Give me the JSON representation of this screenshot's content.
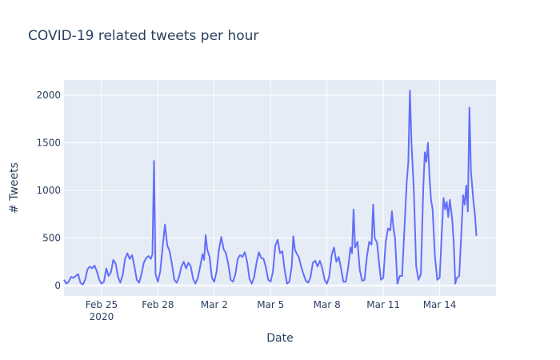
{
  "chart_data": {
    "type": "line",
    "title": "COVID-19 related tweets per hour",
    "xlabel": "Date",
    "ylabel": "# Tweets",
    "x_range": [
      "2020-02-23T00:00",
      "2020-03-17T00:00"
    ],
    "ylim": [
      -110,
      2160
    ],
    "x_ticks": [
      {
        "date": "2020-02-25T00:00",
        "label": "Feb 25",
        "sublabel": "2020"
      },
      {
        "date": "2020-02-28T00:00",
        "label": "Feb 28",
        "sublabel": ""
      },
      {
        "date": "2020-03-02T00:00",
        "label": "Mar 2",
        "sublabel": ""
      },
      {
        "date": "2020-03-05T00:00",
        "label": "Mar 5",
        "sublabel": ""
      },
      {
        "date": "2020-03-08T00:00",
        "label": "Mar 8",
        "sublabel": ""
      },
      {
        "date": "2020-03-11T00:00",
        "label": "Mar 11",
        "sublabel": ""
      },
      {
        "date": "2020-03-14T00:00",
        "label": "Mar 14",
        "sublabel": ""
      }
    ],
    "y_ticks": [
      0,
      500,
      1000,
      1500,
      2000
    ],
    "y_tick_labels": [
      "0",
      "500",
      "1000",
      "1500",
      "2000"
    ],
    "grid": true,
    "series": [
      {
        "color": "#636efa",
        "points": [
          [
            "2020-02-23T00:00",
            60
          ],
          [
            "2020-02-23T03:00",
            20
          ],
          [
            "2020-02-23T06:00",
            40
          ],
          [
            "2020-02-23T09:00",
            90
          ],
          [
            "2020-02-23T12:00",
            80
          ],
          [
            "2020-02-23T15:00",
            100
          ],
          [
            "2020-02-23T18:00",
            120
          ],
          [
            "2020-02-23T21:00",
            30
          ],
          [
            "2020-02-24T00:00",
            10
          ],
          [
            "2020-02-24T03:00",
            60
          ],
          [
            "2020-02-24T06:00",
            170
          ],
          [
            "2020-02-24T09:00",
            200
          ],
          [
            "2020-02-24T12:00",
            180
          ],
          [
            "2020-02-24T15:00",
            210
          ],
          [
            "2020-02-24T18:00",
            150
          ],
          [
            "2020-02-24T21:00",
            60
          ],
          [
            "2020-02-25T00:00",
            20
          ],
          [
            "2020-02-25T03:00",
            40
          ],
          [
            "2020-02-25T06:00",
            180
          ],
          [
            "2020-02-25T09:00",
            100
          ],
          [
            "2020-02-25T12:00",
            140
          ],
          [
            "2020-02-25T15:00",
            270
          ],
          [
            "2020-02-25T18:00",
            230
          ],
          [
            "2020-02-25T21:00",
            90
          ],
          [
            "2020-02-26T00:00",
            30
          ],
          [
            "2020-02-26T03:00",
            110
          ],
          [
            "2020-02-26T06:00",
            280
          ],
          [
            "2020-02-26T09:00",
            340
          ],
          [
            "2020-02-26T12:00",
            280
          ],
          [
            "2020-02-26T15:00",
            320
          ],
          [
            "2020-02-26T18:00",
            200
          ],
          [
            "2020-02-26T21:00",
            60
          ],
          [
            "2020-02-27T00:00",
            30
          ],
          [
            "2020-02-27T03:00",
            120
          ],
          [
            "2020-02-27T06:00",
            240
          ],
          [
            "2020-02-27T09:00",
            290
          ],
          [
            "2020-02-27T12:00",
            310
          ],
          [
            "2020-02-27T15:00",
            280
          ],
          [
            "2020-02-27T17:00",
            330
          ],
          [
            "2020-02-27T19:00",
            1310
          ],
          [
            "2020-02-27T21:00",
            120
          ],
          [
            "2020-02-28T00:00",
            40
          ],
          [
            "2020-02-28T03:00",
            150
          ],
          [
            "2020-02-28T06:00",
            400
          ],
          [
            "2020-02-28T09:00",
            640
          ],
          [
            "2020-02-28T12:00",
            420
          ],
          [
            "2020-02-28T15:00",
            360
          ],
          [
            "2020-02-28T18:00",
            220
          ],
          [
            "2020-02-28T21:00",
            60
          ],
          [
            "2020-02-29T00:00",
            30
          ],
          [
            "2020-02-29T03:00",
            90
          ],
          [
            "2020-02-29T06:00",
            200
          ],
          [
            "2020-02-29T09:00",
            250
          ],
          [
            "2020-02-29T12:00",
            180
          ],
          [
            "2020-02-29T15:00",
            240
          ],
          [
            "2020-02-29T18:00",
            200
          ],
          [
            "2020-02-29T21:00",
            70
          ],
          [
            "2020-03-01T00:00",
            20
          ],
          [
            "2020-03-01T03:00",
            80
          ],
          [
            "2020-03-01T06:00",
            200
          ],
          [
            "2020-03-01T09:00",
            330
          ],
          [
            "2020-03-01T11:00",
            270
          ],
          [
            "2020-03-01T13:00",
            530
          ],
          [
            "2020-03-01T15:00",
            380
          ],
          [
            "2020-03-01T18:00",
            300
          ],
          [
            "2020-03-01T21:00",
            80
          ],
          [
            "2020-03-02T00:00",
            40
          ],
          [
            "2020-03-02T03:00",
            150
          ],
          [
            "2020-03-02T06:00",
            380
          ],
          [
            "2020-03-02T09:00",
            510
          ],
          [
            "2020-03-02T12:00",
            380
          ],
          [
            "2020-03-02T15:00",
            340
          ],
          [
            "2020-03-02T18:00",
            220
          ],
          [
            "2020-03-02T21:00",
            60
          ],
          [
            "2020-03-03T00:00",
            40
          ],
          [
            "2020-03-03T03:00",
            120
          ],
          [
            "2020-03-03T06:00",
            280
          ],
          [
            "2020-03-03T09:00",
            320
          ],
          [
            "2020-03-03T12:00",
            300
          ],
          [
            "2020-03-03T15:00",
            350
          ],
          [
            "2020-03-03T18:00",
            250
          ],
          [
            "2020-03-03T21:00",
            70
          ],
          [
            "2020-03-04T00:00",
            20
          ],
          [
            "2020-03-04T03:00",
            90
          ],
          [
            "2020-03-04T06:00",
            240
          ],
          [
            "2020-03-04T09:00",
            350
          ],
          [
            "2020-03-04T12:00",
            290
          ],
          [
            "2020-03-04T15:00",
            280
          ],
          [
            "2020-03-04T18:00",
            190
          ],
          [
            "2020-03-04T21:00",
            60
          ],
          [
            "2020-03-05T00:00",
            40
          ],
          [
            "2020-03-05T03:00",
            150
          ],
          [
            "2020-03-05T06:00",
            420
          ],
          [
            "2020-03-05T09:00",
            480
          ],
          [
            "2020-03-05T12:00",
            340
          ],
          [
            "2020-03-05T15:00",
            360
          ],
          [
            "2020-03-05T18:00",
            160
          ],
          [
            "2020-03-05T21:00",
            20
          ],
          [
            "2020-03-06T00:00",
            40
          ],
          [
            "2020-03-06T03:00",
            200
          ],
          [
            "2020-03-06T05:00",
            520
          ],
          [
            "2020-03-06T07:00",
            380
          ],
          [
            "2020-03-06T09:00",
            340
          ],
          [
            "2020-03-06T12:00",
            300
          ],
          [
            "2020-03-06T15:00",
            200
          ],
          [
            "2020-03-06T18:00",
            120
          ],
          [
            "2020-03-06T21:00",
            50
          ],
          [
            "2020-03-07T00:00",
            30
          ],
          [
            "2020-03-07T03:00",
            90
          ],
          [
            "2020-03-07T06:00",
            240
          ],
          [
            "2020-03-07T09:00",
            260
          ],
          [
            "2020-03-07T12:00",
            200
          ],
          [
            "2020-03-07T15:00",
            260
          ],
          [
            "2020-03-07T18:00",
            180
          ],
          [
            "2020-03-07T21:00",
            60
          ],
          [
            "2020-03-08T00:00",
            20
          ],
          [
            "2020-03-08T03:00",
            100
          ],
          [
            "2020-03-08T06:00",
            320
          ],
          [
            "2020-03-08T09:00",
            400
          ],
          [
            "2020-03-08T12:00",
            250
          ],
          [
            "2020-03-08T15:00",
            300
          ],
          [
            "2020-03-08T18:00",
            180
          ],
          [
            "2020-03-08T21:00",
            40
          ],
          [
            "2020-03-09T00:00",
            40
          ],
          [
            "2020-03-09T03:00",
            180
          ],
          [
            "2020-03-09T06:00",
            400
          ],
          [
            "2020-03-09T08:00",
            340
          ],
          [
            "2020-03-09T10:00",
            800
          ],
          [
            "2020-03-09T12:00",
            400
          ],
          [
            "2020-03-09T15:00",
            460
          ],
          [
            "2020-03-09T18:00",
            160
          ],
          [
            "2020-03-09T21:00",
            50
          ],
          [
            "2020-03-10T00:00",
            60
          ],
          [
            "2020-03-10T03:00",
            300
          ],
          [
            "2020-03-10T06:00",
            460
          ],
          [
            "2020-03-10T09:00",
            430
          ],
          [
            "2020-03-10T11:00",
            850
          ],
          [
            "2020-03-10T13:00",
            500
          ],
          [
            "2020-03-10T16:00",
            450
          ],
          [
            "2020-03-10T19:00",
            200
          ],
          [
            "2020-03-10T21:00",
            60
          ],
          [
            "2020-03-11T00:00",
            80
          ],
          [
            "2020-03-11T03:00",
            450
          ],
          [
            "2020-03-11T06:00",
            600
          ],
          [
            "2020-03-11T09:00",
            580
          ],
          [
            "2020-03-11T11:00",
            780
          ],
          [
            "2020-03-11T13:00",
            600
          ],
          [
            "2020-03-11T15:00",
            500
          ],
          [
            "2020-03-11T18:00",
            20
          ],
          [
            "2020-03-11T21:00",
            100
          ],
          [
            "2020-03-12T00:00",
            100
          ],
          [
            "2020-03-12T03:00",
            600
          ],
          [
            "2020-03-12T06:00",
            1100
          ],
          [
            "2020-03-12T08:00",
            1300
          ],
          [
            "2020-03-12T10:00",
            2050
          ],
          [
            "2020-03-12T12:00",
            1500
          ],
          [
            "2020-03-12T15:00",
            1000
          ],
          [
            "2020-03-12T18:00",
            200
          ],
          [
            "2020-03-12T21:00",
            60
          ],
          [
            "2020-03-13T00:00",
            120
          ],
          [
            "2020-03-13T03:00",
            1000
          ],
          [
            "2020-03-13T05:00",
            1400
          ],
          [
            "2020-03-13T07:00",
            1300
          ],
          [
            "2020-03-13T09:00",
            1500
          ],
          [
            "2020-03-13T11:00",
            1150
          ],
          [
            "2020-03-13T13:00",
            900
          ],
          [
            "2020-03-13T15:00",
            800
          ],
          [
            "2020-03-13T18:00",
            300
          ],
          [
            "2020-03-13T21:00",
            60
          ],
          [
            "2020-03-14T00:00",
            80
          ],
          [
            "2020-03-14T03:00",
            600
          ],
          [
            "2020-03-14T05:00",
            920
          ],
          [
            "2020-03-14T07:00",
            800
          ],
          [
            "2020-03-14T09:00",
            880
          ],
          [
            "2020-03-14T11:00",
            720
          ],
          [
            "2020-03-14T13:00",
            900
          ],
          [
            "2020-03-14T16:00",
            700
          ],
          [
            "2020-03-14T18:00",
            450
          ],
          [
            "2020-03-14T20:00",
            20
          ],
          [
            "2020-03-14T22:00",
            80
          ],
          [
            "2020-03-15T01:00",
            100
          ],
          [
            "2020-03-15T04:00",
            600
          ],
          [
            "2020-03-15T06:00",
            950
          ],
          [
            "2020-03-15T08:00",
            850
          ],
          [
            "2020-03-15T10:00",
            1050
          ],
          [
            "2020-03-15T12:00",
            780
          ],
          [
            "2020-03-15T14:00",
            1870
          ],
          [
            "2020-03-15T16:00",
            1200
          ],
          [
            "2020-03-15T19:00",
            900
          ],
          [
            "2020-03-15T21:00",
            750
          ],
          [
            "2020-03-15T23:00",
            520
          ]
        ]
      }
    ]
  }
}
